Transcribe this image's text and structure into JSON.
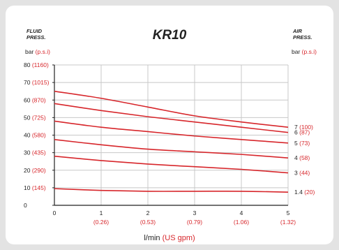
{
  "chart_data": {
    "type": "line",
    "title": "KR10",
    "left_header": [
      "FLUID",
      "PRESS."
    ],
    "right_header": [
      "AIR",
      "PRESS."
    ],
    "left_unit": {
      "main": "bar",
      "alt": "(p.s.i)"
    },
    "right_unit": {
      "main": "bar",
      "alt": "(p.s.i)"
    },
    "xlabel": {
      "main": "l/min",
      "alt": "(US gpm)"
    },
    "xlim": [
      0,
      5
    ],
    "ylim": [
      0,
      80
    ],
    "grid": true,
    "x_ticks": [
      {
        "v": 0,
        "main": "0",
        "alt": ""
      },
      {
        "v": 1,
        "main": "1",
        "alt": "(0.26)"
      },
      {
        "v": 2,
        "main": "2",
        "alt": "(0.53)"
      },
      {
        "v": 3,
        "main": "3",
        "alt": "(0.79)"
      },
      {
        "v": 4,
        "main": "4",
        "alt": "(1.06)"
      },
      {
        "v": 5,
        "main": "5",
        "alt": "(1.32)"
      }
    ],
    "y_ticks": [
      {
        "v": 0,
        "main": "0",
        "alt": ""
      },
      {
        "v": 10,
        "main": "10",
        "alt": "(145)"
      },
      {
        "v": 20,
        "main": "20",
        "alt": "(290)"
      },
      {
        "v": 30,
        "main": "30",
        "alt": "(435)"
      },
      {
        "v": 40,
        "main": "40",
        "alt": "(580)"
      },
      {
        "v": 50,
        "main": "50",
        "alt": "(725)"
      },
      {
        "v": 60,
        "main": "60",
        "alt": "(870)"
      },
      {
        "v": 70,
        "main": "70",
        "alt": "(1015)"
      },
      {
        "v": 80,
        "main": "80",
        "alt": "(1160)"
      }
    ],
    "series": [
      {
        "name": "7",
        "alt": "(100)",
        "x": [
          0,
          1,
          2,
          3,
          4,
          5
        ],
        "y": [
          65,
          61,
          56,
          51,
          47.5,
          44.5
        ]
      },
      {
        "name": "6",
        "alt": "(87)",
        "x": [
          0,
          1,
          2,
          3,
          4,
          5
        ],
        "y": [
          58,
          54,
          50.5,
          47.5,
          44.5,
          41.5
        ]
      },
      {
        "name": "5",
        "alt": "(73)",
        "x": [
          0,
          1,
          2,
          3,
          4,
          5
        ],
        "y": [
          48,
          44.5,
          42,
          39.5,
          37.5,
          35.5
        ]
      },
      {
        "name": "4",
        "alt": "(58)",
        "x": [
          0,
          1,
          2,
          3,
          4,
          5
        ],
        "y": [
          37.5,
          34.5,
          32,
          30.5,
          29,
          27
        ]
      },
      {
        "name": "3",
        "alt": "(44)",
        "x": [
          0,
          1,
          2,
          3,
          4,
          5
        ],
        "y": [
          28,
          25.5,
          23.5,
          22,
          20.5,
          18.5
        ]
      },
      {
        "name": "1.4",
        "alt": "(20)",
        "x": [
          0,
          1,
          2,
          3,
          4,
          5
        ],
        "y": [
          9.5,
          8.5,
          8,
          8,
          8,
          7.5
        ]
      }
    ],
    "colors": {
      "line": "#d7262b",
      "alt_text": "#d7262b",
      "grid": "#c8c8c8",
      "axis": "#222222",
      "text": "#222222"
    }
  }
}
